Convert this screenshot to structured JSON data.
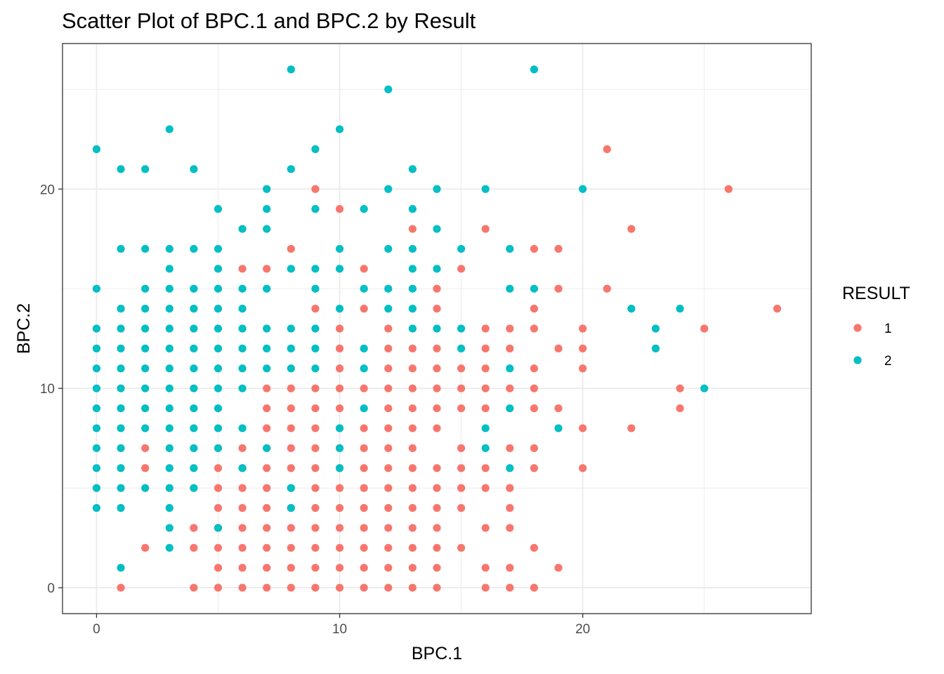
{
  "chart_data": {
    "type": "scatter",
    "title": "Scatter Plot of BPC.1 and BPC.2 by Result",
    "xlabel": "BPC.1",
    "ylabel": "BPC.2",
    "xlim": [
      -1.4,
      29.4
    ],
    "ylim": [
      -1.3,
      27.3
    ],
    "x_ticks": [
      0,
      10,
      20
    ],
    "y_ticks": [
      0,
      10,
      20
    ],
    "grid": true,
    "legend": {
      "title": "RESULT",
      "placement": "right",
      "entries": [
        {
          "label": "1",
          "color": "#F8766D"
        },
        {
          "label": "2",
          "color": "#00BFC4"
        }
      ]
    },
    "series": [
      {
        "name": "1",
        "color": "#F8766D",
        "points": [
          [
            1,
            0
          ],
          [
            2,
            2
          ],
          [
            2,
            6
          ],
          [
            2,
            7
          ],
          [
            4,
            0
          ],
          [
            4,
            2
          ],
          [
            4,
            3
          ],
          [
            5,
            0
          ],
          [
            5,
            1
          ],
          [
            5,
            2
          ],
          [
            5,
            3
          ],
          [
            5,
            4
          ],
          [
            5,
            5
          ],
          [
            5,
            6
          ],
          [
            6,
            0
          ],
          [
            6,
            1
          ],
          [
            6,
            2
          ],
          [
            6,
            3
          ],
          [
            6,
            4
          ],
          [
            6,
            5
          ],
          [
            6,
            6
          ],
          [
            6,
            7
          ],
          [
            6,
            16
          ],
          [
            7,
            0
          ],
          [
            7,
            1
          ],
          [
            7,
            2
          ],
          [
            7,
            3
          ],
          [
            7,
            4
          ],
          [
            7,
            5
          ],
          [
            7,
            6
          ],
          [
            7,
            7
          ],
          [
            7,
            8
          ],
          [
            7,
            9
          ],
          [
            7,
            10
          ],
          [
            7,
            16
          ],
          [
            8,
            0
          ],
          [
            8,
            1
          ],
          [
            8,
            2
          ],
          [
            8,
            3
          ],
          [
            8,
            4
          ],
          [
            8,
            5
          ],
          [
            8,
            6
          ],
          [
            8,
            7
          ],
          [
            8,
            8
          ],
          [
            8,
            9
          ],
          [
            8,
            10
          ],
          [
            8,
            17
          ],
          [
            9,
            0
          ],
          [
            9,
            1
          ],
          [
            9,
            2
          ],
          [
            9,
            3
          ],
          [
            9,
            4
          ],
          [
            9,
            5
          ],
          [
            9,
            6
          ],
          [
            9,
            7
          ],
          [
            9,
            8
          ],
          [
            9,
            9
          ],
          [
            9,
            10
          ],
          [
            9,
            14
          ],
          [
            9,
            20
          ],
          [
            10,
            0
          ],
          [
            10,
            1
          ],
          [
            10,
            2
          ],
          [
            10,
            3
          ],
          [
            10,
            4
          ],
          [
            10,
            5
          ],
          [
            10,
            6
          ],
          [
            10,
            7
          ],
          [
            10,
            8
          ],
          [
            10,
            9
          ],
          [
            10,
            10
          ],
          [
            10,
            11
          ],
          [
            10,
            12
          ],
          [
            10,
            13
          ],
          [
            10,
            19
          ],
          [
            11,
            0
          ],
          [
            11,
            1
          ],
          [
            11,
            2
          ],
          [
            11,
            3
          ],
          [
            11,
            4
          ],
          [
            11,
            5
          ],
          [
            11,
            6
          ],
          [
            11,
            7
          ],
          [
            11,
            8
          ],
          [
            11,
            10
          ],
          [
            11,
            14
          ],
          [
            11,
            16
          ],
          [
            12,
            0
          ],
          [
            12,
            1
          ],
          [
            12,
            2
          ],
          [
            12,
            3
          ],
          [
            12,
            4
          ],
          [
            12,
            5
          ],
          [
            12,
            6
          ],
          [
            12,
            7
          ],
          [
            12,
            8
          ],
          [
            12,
            9
          ],
          [
            12,
            10
          ],
          [
            12,
            11
          ],
          [
            12,
            12
          ],
          [
            12,
            13
          ],
          [
            13,
            0
          ],
          [
            13,
            1
          ],
          [
            13,
            2
          ],
          [
            13,
            3
          ],
          [
            13,
            4
          ],
          [
            13,
            5
          ],
          [
            13,
            6
          ],
          [
            13,
            7
          ],
          [
            13,
            8
          ],
          [
            13,
            9
          ],
          [
            13,
            10
          ],
          [
            13,
            11
          ],
          [
            13,
            12
          ],
          [
            13,
            18
          ],
          [
            14,
            0
          ],
          [
            14,
            1
          ],
          [
            14,
            2
          ],
          [
            14,
            3
          ],
          [
            14,
            4
          ],
          [
            14,
            5
          ],
          [
            14,
            6
          ],
          [
            14,
            8
          ],
          [
            14,
            9
          ],
          [
            14,
            10
          ],
          [
            14,
            11
          ],
          [
            14,
            12
          ],
          [
            14,
            14
          ],
          [
            14,
            15
          ],
          [
            15,
            2
          ],
          [
            15,
            4
          ],
          [
            15,
            5
          ],
          [
            15,
            6
          ],
          [
            15,
            7
          ],
          [
            15,
            9
          ],
          [
            15,
            10
          ],
          [
            15,
            11
          ],
          [
            15,
            16
          ],
          [
            16,
            0
          ],
          [
            16,
            1
          ],
          [
            16,
            3
          ],
          [
            16,
            5
          ],
          [
            16,
            6
          ],
          [
            16,
            9
          ],
          [
            16,
            10
          ],
          [
            16,
            11
          ],
          [
            16,
            12
          ],
          [
            16,
            13
          ],
          [
            16,
            18
          ],
          [
            17,
            0
          ],
          [
            17,
            1
          ],
          [
            17,
            3
          ],
          [
            17,
            4
          ],
          [
            17,
            5
          ],
          [
            17,
            7
          ],
          [
            17,
            10
          ],
          [
            17,
            12
          ],
          [
            17,
            13
          ],
          [
            18,
            0
          ],
          [
            18,
            2
          ],
          [
            18,
            6
          ],
          [
            18,
            7
          ],
          [
            18,
            9
          ],
          [
            18,
            10
          ],
          [
            18,
            11
          ],
          [
            18,
            13
          ],
          [
            18,
            14
          ],
          [
            18,
            17
          ],
          [
            19,
            1
          ],
          [
            19,
            9
          ],
          [
            19,
            12
          ],
          [
            19,
            15
          ],
          [
            19,
            17
          ],
          [
            20,
            6
          ],
          [
            20,
            8
          ],
          [
            20,
            11
          ],
          [
            20,
            12
          ],
          [
            20,
            13
          ],
          [
            21,
            15
          ],
          [
            21,
            22
          ],
          [
            22,
            8
          ],
          [
            22,
            18
          ],
          [
            24,
            9
          ],
          [
            24,
            10
          ],
          [
            25,
            13
          ],
          [
            26,
            20
          ],
          [
            28,
            14
          ]
        ]
      },
      {
        "name": "2",
        "color": "#00BFC4",
        "points": [
          [
            0,
            4
          ],
          [
            0,
            5
          ],
          [
            0,
            6
          ],
          [
            0,
            7
          ],
          [
            0,
            8
          ],
          [
            0,
            9
          ],
          [
            0,
            10
          ],
          [
            0,
            11
          ],
          [
            0,
            12
          ],
          [
            0,
            13
          ],
          [
            0,
            15
          ],
          [
            0,
            22
          ],
          [
            1,
            1
          ],
          [
            1,
            4
          ],
          [
            1,
            5
          ],
          [
            1,
            6
          ],
          [
            1,
            7
          ],
          [
            1,
            8
          ],
          [
            1,
            9
          ],
          [
            1,
            10
          ],
          [
            1,
            11
          ],
          [
            1,
            12
          ],
          [
            1,
            13
          ],
          [
            1,
            14
          ],
          [
            1,
            17
          ],
          [
            1,
            21
          ],
          [
            2,
            5
          ],
          [
            2,
            8
          ],
          [
            2,
            9
          ],
          [
            2,
            10
          ],
          [
            2,
            11
          ],
          [
            2,
            12
          ],
          [
            2,
            13
          ],
          [
            2,
            14
          ],
          [
            2,
            15
          ],
          [
            2,
            17
          ],
          [
            2,
            21
          ],
          [
            3,
            2
          ],
          [
            3,
            3
          ],
          [
            3,
            4
          ],
          [
            3,
            5
          ],
          [
            3,
            6
          ],
          [
            3,
            7
          ],
          [
            3,
            8
          ],
          [
            3,
            9
          ],
          [
            3,
            10
          ],
          [
            3,
            11
          ],
          [
            3,
            12
          ],
          [
            3,
            13
          ],
          [
            3,
            14
          ],
          [
            3,
            15
          ],
          [
            3,
            16
          ],
          [
            3,
            17
          ],
          [
            3,
            23
          ],
          [
            4,
            5
          ],
          [
            4,
            6
          ],
          [
            4,
            7
          ],
          [
            4,
            8
          ],
          [
            4,
            9
          ],
          [
            4,
            10
          ],
          [
            4,
            11
          ],
          [
            4,
            12
          ],
          [
            4,
            13
          ],
          [
            4,
            14
          ],
          [
            4,
            15
          ],
          [
            4,
            17
          ],
          [
            4,
            21
          ],
          [
            5,
            3
          ],
          [
            5,
            7
          ],
          [
            5,
            8
          ],
          [
            5,
            9
          ],
          [
            5,
            10
          ],
          [
            5,
            11
          ],
          [
            5,
            12
          ],
          [
            5,
            13
          ],
          [
            5,
            14
          ],
          [
            5,
            15
          ],
          [
            5,
            16
          ],
          [
            5,
            17
          ],
          [
            5,
            19
          ],
          [
            6,
            6
          ],
          [
            6,
            8
          ],
          [
            6,
            10
          ],
          [
            6,
            11
          ],
          [
            6,
            12
          ],
          [
            6,
            13
          ],
          [
            6,
            14
          ],
          [
            6,
            15
          ],
          [
            6,
            18
          ],
          [
            7,
            7
          ],
          [
            7,
            11
          ],
          [
            7,
            12
          ],
          [
            7,
            13
          ],
          [
            7,
            15
          ],
          [
            7,
            18
          ],
          [
            7,
            19
          ],
          [
            7,
            20
          ],
          [
            8,
            4
          ],
          [
            8,
            5
          ],
          [
            8,
            11
          ],
          [
            8,
            12
          ],
          [
            8,
            13
          ],
          [
            8,
            16
          ],
          [
            8,
            21
          ],
          [
            8,
            26
          ],
          [
            9,
            11
          ],
          [
            9,
            12
          ],
          [
            9,
            13
          ],
          [
            9,
            15
          ],
          [
            9,
            16
          ],
          [
            9,
            19
          ],
          [
            9,
            22
          ],
          [
            10,
            6
          ],
          [
            10,
            7
          ],
          [
            10,
            8
          ],
          [
            10,
            14
          ],
          [
            10,
            16
          ],
          [
            10,
            17
          ],
          [
            10,
            23
          ],
          [
            11,
            9
          ],
          [
            11,
            11
          ],
          [
            11,
            12
          ],
          [
            11,
            15
          ],
          [
            11,
            19
          ],
          [
            12,
            14
          ],
          [
            12,
            15
          ],
          [
            12,
            17
          ],
          [
            12,
            20
          ],
          [
            12,
            25
          ],
          [
            13,
            13
          ],
          [
            13,
            14
          ],
          [
            13,
            15
          ],
          [
            13,
            16
          ],
          [
            13,
            17
          ],
          [
            13,
            19
          ],
          [
            13,
            21
          ],
          [
            14,
            13
          ],
          [
            14,
            16
          ],
          [
            14,
            18
          ],
          [
            14,
            20
          ],
          [
            15,
            12
          ],
          [
            15,
            13
          ],
          [
            15,
            17
          ],
          [
            16,
            7
          ],
          [
            16,
            8
          ],
          [
            16,
            20
          ],
          [
            17,
            6
          ],
          [
            17,
            9
          ],
          [
            17,
            11
          ],
          [
            17,
            15
          ],
          [
            17,
            17
          ],
          [
            18,
            15
          ],
          [
            18,
            26
          ],
          [
            19,
            8
          ],
          [
            20,
            20
          ],
          [
            22,
            14
          ],
          [
            23,
            12
          ],
          [
            23,
            13
          ],
          [
            24,
            14
          ],
          [
            25,
            10
          ]
        ]
      }
    ]
  }
}
